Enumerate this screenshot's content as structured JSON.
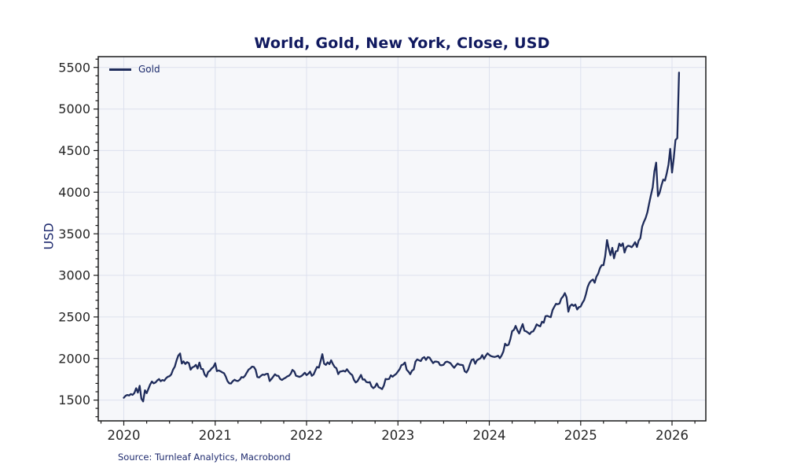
{
  "chart_data": {
    "type": "line",
    "title": "World, Gold, New York, Close, USD",
    "ylabel": "USD",
    "xlabel": "",
    "source": "Source: Turnleaf Analytics, Macrobond",
    "grid": true,
    "legend_position": "top-left",
    "xlim": [
      2019.72,
      2026.37
    ],
    "ylim": [
      1250,
      5630
    ],
    "x_ticks": [
      2020,
      2021,
      2022,
      2023,
      2024,
      2025,
      2026
    ],
    "x_minor_step": 0.25,
    "y_ticks": [
      1500,
      2000,
      2500,
      3000,
      3500,
      4000,
      4500,
      5000,
      5500
    ],
    "y_minor_step": 100,
    "colors": {
      "line": "#1f2c5b",
      "plot_background": "#f6f7fa",
      "gridline": "#dde1ee",
      "spine": "#1a1a1a",
      "tick_label": "#262626",
      "title": "#10195f",
      "navy_text": "#1e2a6e"
    },
    "series": [
      {
        "name": "Gold",
        "color": "#1f2c5b",
        "x_start": 2020.0,
        "x_step_years": 0.01923,
        "values": [
          1528,
          1552,
          1561,
          1556,
          1573,
          1562,
          1586,
          1643,
          1590,
          1672,
          1516,
          1484,
          1618,
          1583,
          1635,
          1689,
          1723,
          1701,
          1712,
          1735,
          1752,
          1727,
          1741,
          1733,
          1762,
          1780,
          1787,
          1809,
          1865,
          1902,
          1976,
          2034,
          2061,
          1940,
          1965,
          1934,
          1957,
          1944,
          1866,
          1893,
          1903,
          1924,
          1879,
          1951,
          1876,
          1873,
          1805,
          1781,
          1838,
          1854,
          1881,
          1898,
          1943,
          1849,
          1856,
          1847,
          1834,
          1823,
          1784,
          1729,
          1701,
          1699,
          1727,
          1745,
          1732,
          1729,
          1746,
          1777,
          1771,
          1793,
          1831,
          1867,
          1881,
          1903,
          1898,
          1865,
          1778,
          1772,
          1791,
          1807,
          1802,
          1814,
          1817,
          1729,
          1752,
          1781,
          1810,
          1794,
          1790,
          1754,
          1742,
          1757,
          1768,
          1784,
          1793,
          1817,
          1863,
          1845,
          1792,
          1785,
          1779,
          1788,
          1806,
          1829,
          1801,
          1818,
          1843,
          1792,
          1808,
          1856,
          1899,
          1890,
          1968,
          2052,
          1938,
          1924,
          1954,
          1932,
          1978,
          1934,
          1897,
          1883,
          1812,
          1842,
          1846,
          1853,
          1843,
          1871,
          1840,
          1817,
          1801,
          1742,
          1712,
          1727,
          1766,
          1802,
          1747,
          1749,
          1718,
          1712,
          1716,
          1664,
          1644,
          1660,
          1700,
          1656,
          1645,
          1632,
          1676,
          1754,
          1750,
          1755,
          1798,
          1781,
          1800,
          1815,
          1844,
          1872,
          1920,
          1928,
          1952,
          1865,
          1842,
          1811,
          1854,
          1868,
          1962,
          1989,
          1978,
          1969,
          2004,
          2016,
          1983,
          2016,
          2011,
          1977,
          1944,
          1963,
          1962,
          1958,
          1921,
          1919,
          1925,
          1955,
          1962,
          1954,
          1942,
          1913,
          1889,
          1915,
          1939,
          1926,
          1924,
          1920,
          1848,
          1832,
          1868,
          1932,
          1984,
          1992,
          1937,
          1978,
          1992,
          2003,
          2041,
          1995,
          2032,
          2062,
          2043,
          2029,
          2022,
          2018,
          2024,
          2033,
          2004,
          2035,
          2083,
          2178,
          2156,
          2166,
          2233,
          2329,
          2344,
          2392,
          2338,
          2301,
          2360,
          2414,
          2334,
          2327,
          2311,
          2294,
          2320,
          2327,
          2363,
          2411,
          2396,
          2387,
          2443,
          2431,
          2508,
          2513,
          2503,
          2497,
          2582,
          2622,
          2658,
          2653,
          2661,
          2721,
          2747,
          2786,
          2736,
          2563,
          2631,
          2650,
          2633,
          2648,
          2590,
          2617,
          2625,
          2669,
          2703,
          2771,
          2861,
          2909,
          2936,
          2950,
          2911,
          2984,
          3022,
          3086,
          3123,
          3122,
          3233,
          3425,
          3320,
          3241,
          3331,
          3204,
          3289,
          3293,
          3381,
          3352,
          3385,
          3274,
          3337,
          3356,
          3351,
          3339,
          3363,
          3398,
          3342,
          3416,
          3448,
          3587,
          3643,
          3689,
          3760,
          3865,
          3962,
          4058,
          4251,
          4356,
          3952,
          3996,
          4082,
          4151,
          4139,
          4228,
          4332,
          4520,
          4236,
          4410,
          4628,
          4650,
          5438
        ]
      }
    ]
  }
}
